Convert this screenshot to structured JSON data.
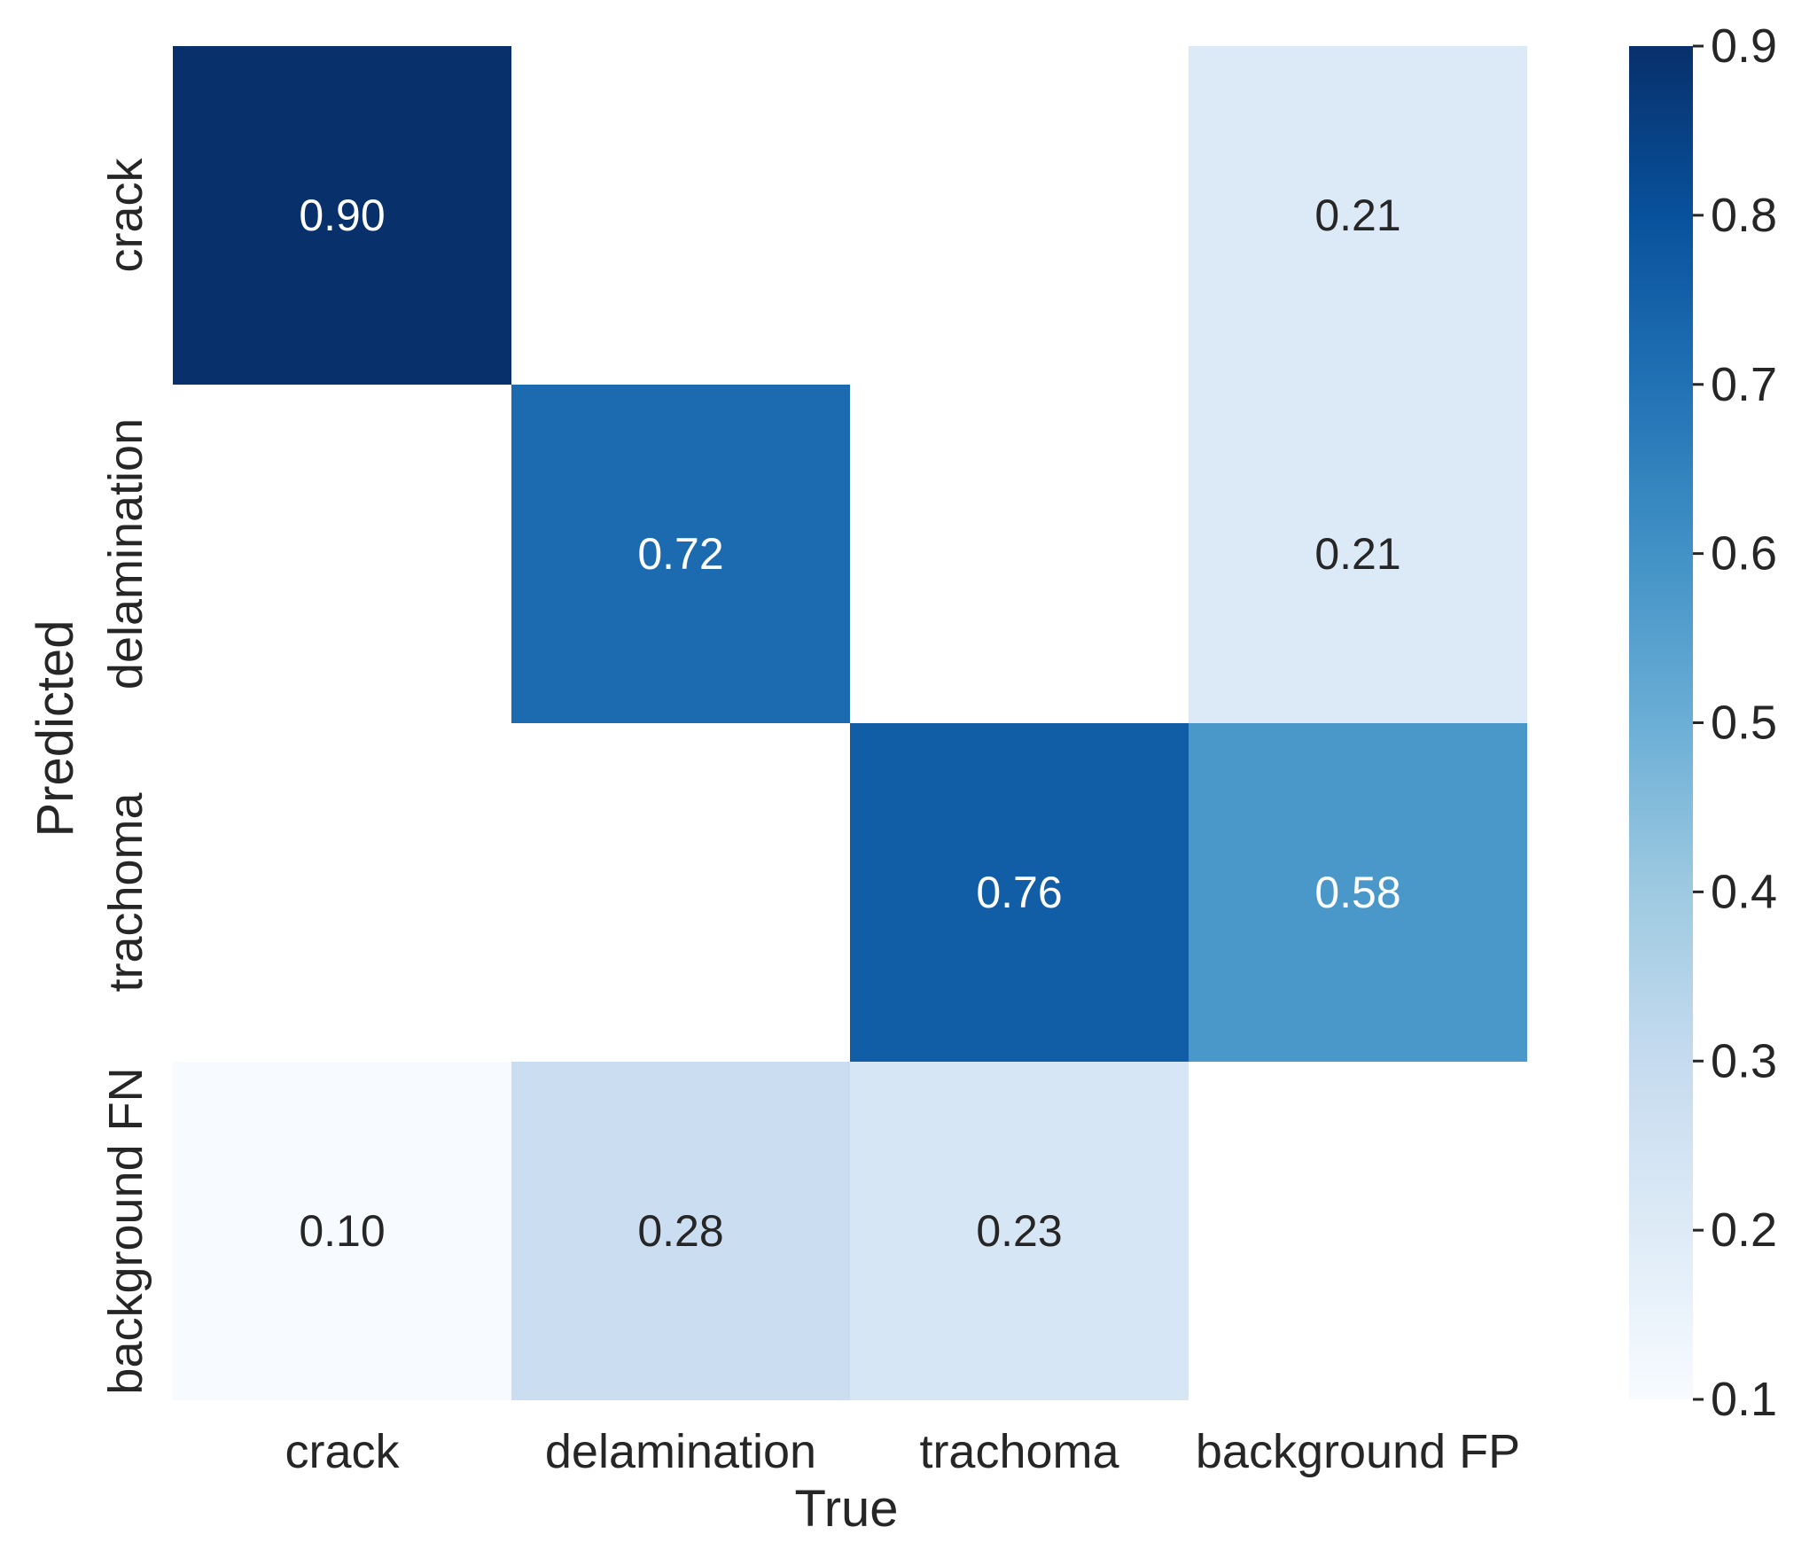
{
  "chart_data": {
    "type": "heatmap",
    "title": "",
    "xlabel": "True",
    "ylabel": "Predicted",
    "x_categories": [
      "crack",
      "delamination",
      "trachoma",
      "background FP"
    ],
    "y_categories": [
      "crack",
      "delamination",
      "trachoma",
      "background FN"
    ],
    "matrix": [
      [
        0.9,
        null,
        null,
        0.21
      ],
      [
        null,
        0.72,
        null,
        0.21
      ],
      [
        null,
        null,
        0.76,
        0.58
      ],
      [
        0.1,
        0.28,
        0.23,
        null
      ]
    ],
    "value_format": "0.00",
    "colormap": "Blues",
    "vmin": 0.1,
    "vmax": 0.9,
    "colorbar_ticks": [
      "0.1",
      "0.2",
      "0.3",
      "0.4",
      "0.5",
      "0.6",
      "0.7",
      "0.8",
      "0.9"
    ],
    "colors": {
      "blues": [
        "#f7fbff",
        "#deebf7",
        "#c6dbef",
        "#9ecae1",
        "#6baed6",
        "#4292c6",
        "#2171b5",
        "#08519c",
        "#08306b"
      ],
      "text_dark": "#262626",
      "text_light": "#ffffff"
    }
  }
}
